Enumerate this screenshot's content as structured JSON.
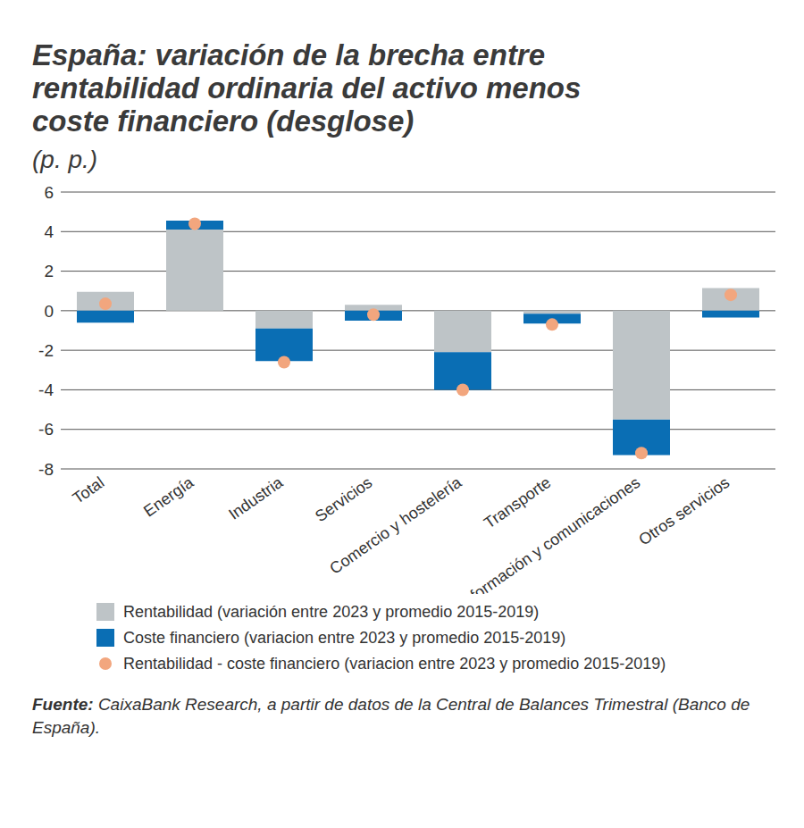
{
  "chart_data": {
    "type": "bar",
    "title": "España: variación de la brecha entre rentabilidad ordinaria del activo menos coste financiero (desglose)",
    "subtitle": "(p. p.)",
    "source_label": "Fuente:",
    "source": "CaixaBank Research, a partir de datos de la Central de Balances Trimestral (Banco de España).",
    "categories": [
      "Total",
      "Energía",
      "Industria",
      "Servicios",
      "Comercio y hostelería",
      "Transporte",
      "Información y comunicaciones",
      "Otros servicios"
    ],
    "stacked": true,
    "grid": true,
    "series": [
      {
        "name": "Rentabilidad (variación entre 2023 y promedio 2015-2019)",
        "type": "bar",
        "color": "#bec4c7",
        "values": [
          0.95,
          4.1,
          -0.9,
          0.3,
          -2.1,
          -0.15,
          -5.5,
          1.15
        ]
      },
      {
        "name": "Coste financiero (variacion entre 2023 y promedio 2015-2019)",
        "type": "bar",
        "color": "#0a6eb4",
        "values": [
          -0.6,
          0.45,
          -1.65,
          -0.5,
          -1.9,
          -0.5,
          -1.8,
          -0.35
        ]
      },
      {
        "name": "Rentabilidad - coste financiero (variacion entre 2023 y promedio 2015-2019)",
        "type": "scatter",
        "marker": "circle",
        "color": "#f2a67e",
        "values": [
          0.35,
          4.4,
          -2.6,
          -0.2,
          -4.0,
          -0.7,
          -7.2,
          0.8
        ]
      }
    ],
    "ylim": [
      -8,
      6
    ],
    "yticks": [
      -8,
      -6,
      -4,
      -2,
      0,
      2,
      4,
      6
    ]
  }
}
